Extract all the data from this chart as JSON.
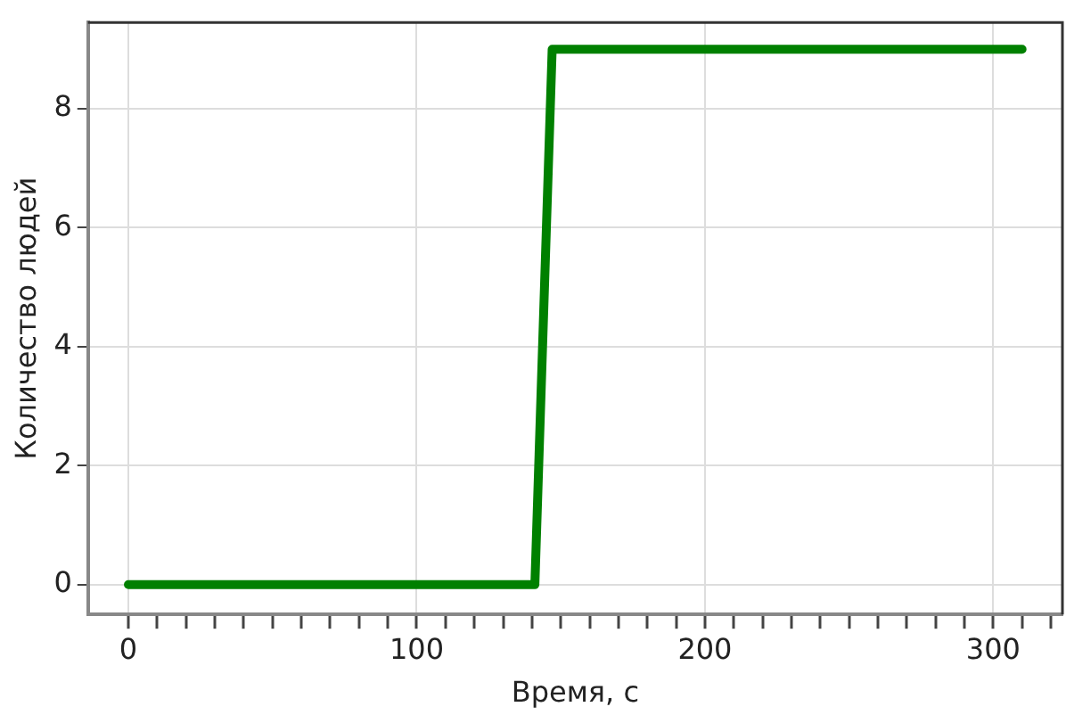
{
  "chart_data": {
    "type": "line",
    "xlabel": "Время, с",
    "ylabel": "Количество людей",
    "series": [
      {
        "color": "#008000",
        "x": [
          0,
          141,
          147,
          310
        ],
        "values": [
          0,
          0,
          9,
          9
        ]
      }
    ],
    "xlim": [
      -14,
      324
    ],
    "ylim": [
      -0.5,
      9.45
    ],
    "xticks": [
      0,
      {
        "value": 10,
        "label": null
      },
      {
        "value": 20,
        "label": null
      },
      {
        "value": 30,
        "label": null
      },
      {
        "value": 40,
        "label": null
      },
      {
        "value": 50,
        "label": null
      },
      {
        "value": 60,
        "label": null
      },
      {
        "value": 70,
        "label": null
      },
      {
        "value": 80,
        "label": null
      },
      {
        "value": 90,
        "label": null
      },
      100,
      {
        "value": 110,
        "label": null
      },
      {
        "value": 120,
        "label": null
      },
      {
        "value": 130,
        "label": null
      },
      {
        "value": 140,
        "label": null
      },
      {
        "value": 150,
        "label": null
      },
      {
        "value": 160,
        "label": null
      },
      {
        "value": 170,
        "label": null
      },
      {
        "value": 180,
        "label": null
      },
      {
        "value": 190,
        "label": null
      },
      200,
      {
        "value": 210,
        "label": null
      },
      {
        "value": 220,
        "label": null
      },
      {
        "value": 230,
        "label": null
      },
      {
        "value": 240,
        "label": null
      },
      {
        "value": 250,
        "label": null
      },
      {
        "value": 260,
        "label": null
      },
      {
        "value": 270,
        "label": null
      },
      {
        "value": 280,
        "label": null
      },
      {
        "value": 290,
        "label": null
      },
      300,
      {
        "value": 310,
        "label": null
      },
      {
        "value": 320,
        "label": null
      }
    ],
    "yticks": [
      0,
      2,
      4,
      6,
      8
    ],
    "grid": true,
    "legend": false,
    "marker": "none",
    "line_style": "solid"
  }
}
